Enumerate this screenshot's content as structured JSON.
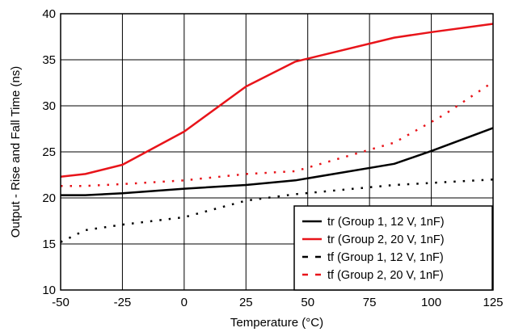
{
  "chart_data": {
    "type": "line",
    "xlabel": "Temperature (°C)",
    "ylabel": "Output - Rise and Fall Time (ns)",
    "xlim": [
      -50,
      125
    ],
    "ylim": [
      10,
      40
    ],
    "x_ticks": [
      "-50",
      "-25",
      "0",
      "25",
      "50",
      "75",
      "100",
      "125"
    ],
    "y_ticks": [
      "10",
      "15",
      "20",
      "25",
      "30",
      "35",
      "40"
    ],
    "grid": true,
    "legend_position": "bottom-right",
    "series": [
      {
        "name": "tr (Group 1, 12 V, 1nF)",
        "color": "#000000",
        "style": "solid",
        "x": [
          -50,
          -40,
          -25,
          0,
          25,
          45,
          85,
          100,
          125
        ],
        "y": [
          20.3,
          20.3,
          20.5,
          21.0,
          21.4,
          21.9,
          23.7,
          25.1,
          27.6
        ]
      },
      {
        "name": "tr (Group 2, 20 V, 1nF)",
        "color": "#e8141a",
        "style": "solid",
        "x": [
          -50,
          -40,
          -25,
          0,
          25,
          45,
          85,
          100,
          125
        ],
        "y": [
          22.3,
          22.6,
          23.6,
          27.2,
          32.1,
          34.8,
          37.4,
          38.0,
          38.9
        ]
      },
      {
        "name": "tf (Group 1, 12 V, 1nF)",
        "color": "#000000",
        "style": "dotted",
        "x": [
          -50,
          -40,
          -25,
          0,
          25,
          45,
          85,
          125
        ],
        "y": [
          15.2,
          16.5,
          17.1,
          17.9,
          19.7,
          20.4,
          21.4,
          22.0
        ]
      },
      {
        "name": "tf (Group 2, 20 V, 1nF)",
        "color": "#e8141a",
        "style": "dotted",
        "x": [
          -50,
          -40,
          -25,
          0,
          25,
          45,
          85,
          105,
          125
        ],
        "y": [
          21.3,
          21.3,
          21.5,
          21.9,
          22.6,
          22.9,
          26.0,
          29.0,
          32.6
        ]
      }
    ]
  }
}
